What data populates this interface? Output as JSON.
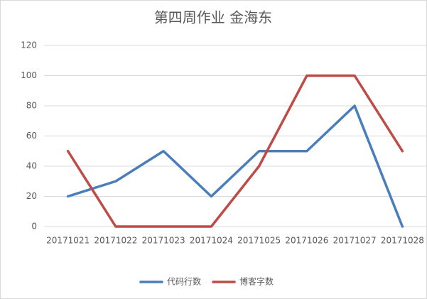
{
  "chart_data": {
    "type": "line",
    "title": "第四周作业 金海东",
    "categories": [
      "20171021",
      "20171022",
      "20171023",
      "20171024",
      "20171025",
      "20171026",
      "20171027",
      "20171028"
    ],
    "series": [
      {
        "name": "代码行数",
        "color": "#4a7ebb",
        "values": [
          20,
          30,
          50,
          20,
          50,
          50,
          80,
          0
        ]
      },
      {
        "name": "博客字数",
        "color": "#be4b48",
        "values": [
          50,
          0,
          0,
          0,
          40,
          100,
          100,
          50
        ]
      }
    ],
    "ylim": [
      0,
      120
    ],
    "yticks": [
      0,
      20,
      40,
      60,
      80,
      100,
      120
    ],
    "grid": true,
    "legend": "bottom"
  }
}
